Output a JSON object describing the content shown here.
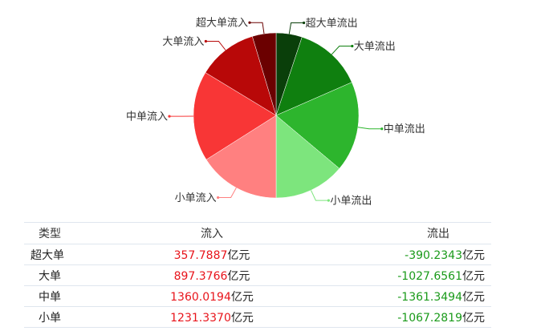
{
  "chart_data": {
    "type": "pie",
    "slices": [
      {
        "label": "超大单流出",
        "value": 390.2343,
        "color": "#0a3f0a",
        "side": "right"
      },
      {
        "label": "大单流出",
        "value": 1027.6561,
        "color": "#0f7f0f",
        "side": "right"
      },
      {
        "label": "中单流出",
        "value": 1361.3494,
        "color": "#2db52d",
        "side": "right"
      },
      {
        "label": "小单流出",
        "value": 1067.2819,
        "color": "#7de57d",
        "side": "right"
      },
      {
        "label": "小单流入",
        "value": 1231.337,
        "color": "#ff8080",
        "side": "left"
      },
      {
        "label": "中单流入",
        "value": 1360.0194,
        "color": "#f83636",
        "side": "left"
      },
      {
        "label": "大单流入",
        "value": 897.3766,
        "color": "#b80808",
        "side": "left"
      },
      {
        "label": "超大单流入",
        "value": 357.7887,
        "color": "#6b0000",
        "side": "left"
      }
    ]
  },
  "table": {
    "headers": {
      "type": "类型",
      "inflow": "流入",
      "outflow": "流出"
    },
    "unit": "亿元",
    "rows": [
      {
        "type": "超大单",
        "inflow": "357.7887",
        "outflow": "-390.2343"
      },
      {
        "type": "大单",
        "inflow": "897.3766",
        "outflow": "-1027.6561"
      },
      {
        "type": "中单",
        "inflow": "1360.0194",
        "outflow": "-1361.3494"
      },
      {
        "type": "小单",
        "inflow": "1231.3370",
        "outflow": "-1067.2819"
      }
    ]
  }
}
